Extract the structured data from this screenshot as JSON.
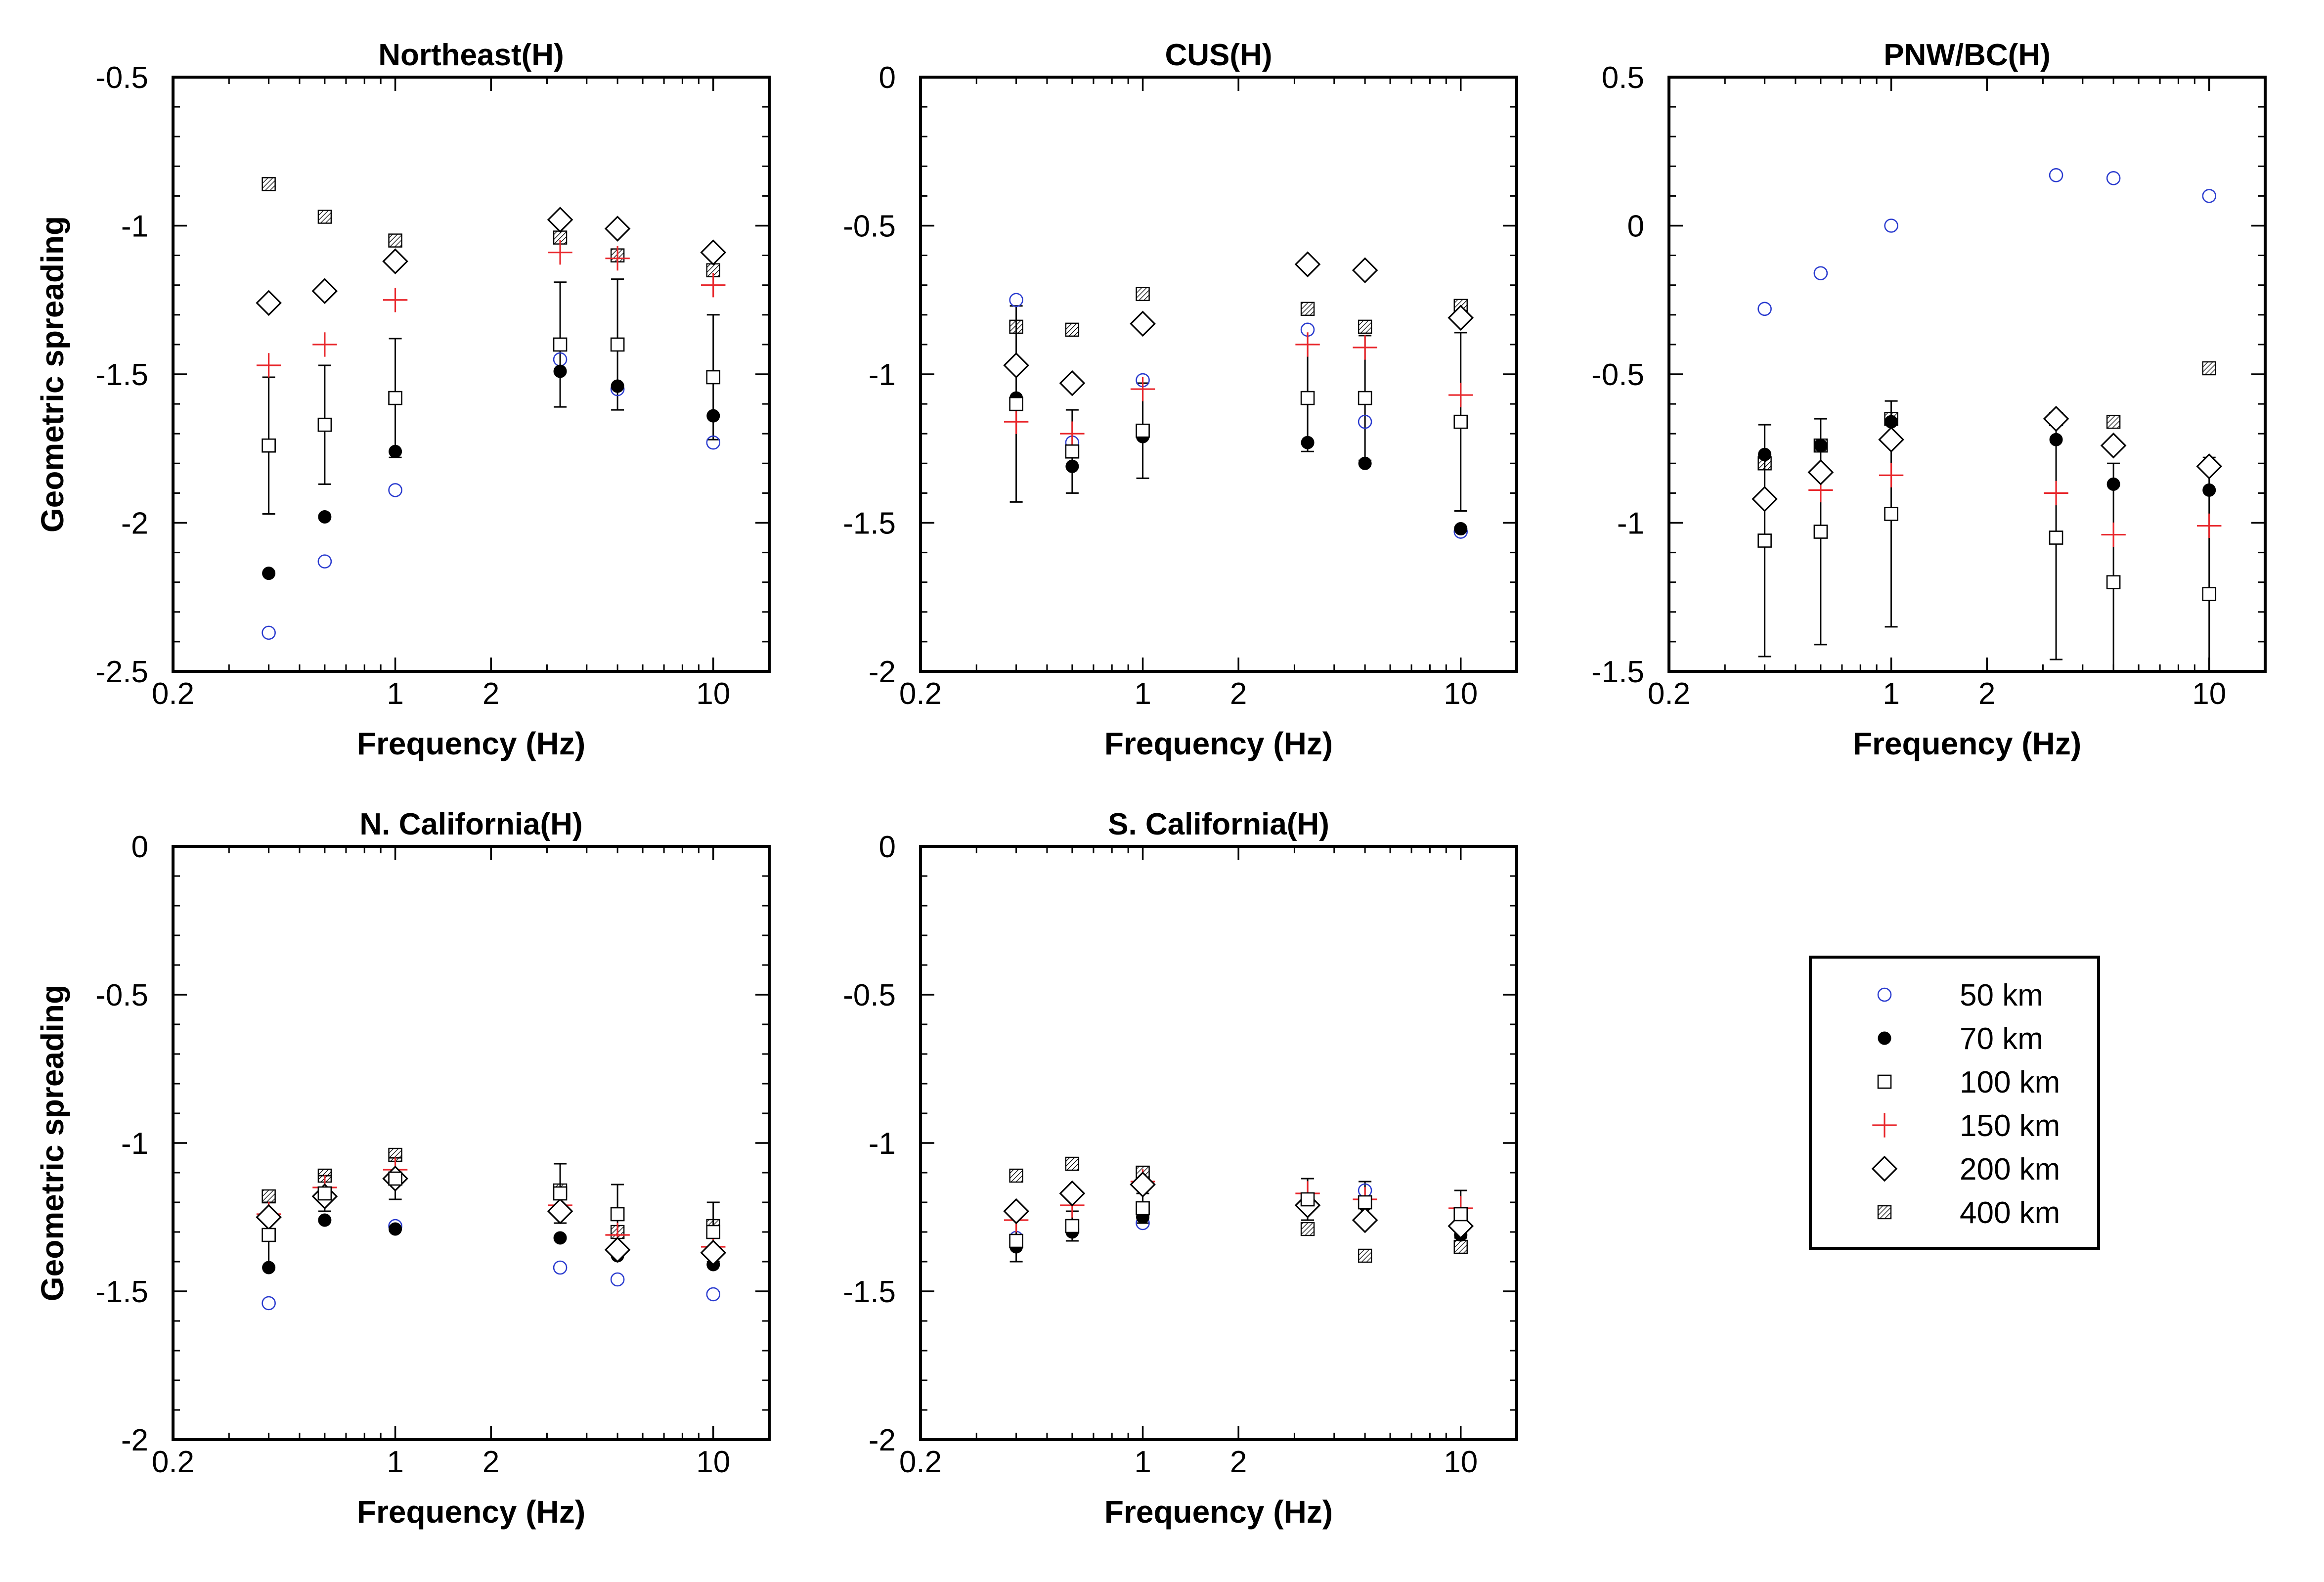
{
  "chart_data": {
    "type": "scatter",
    "x_scale": "log",
    "grid": false,
    "legend": {
      "placement": "bottom-right",
      "entries": [
        {
          "label": "50 km",
          "marker": "open-circle",
          "color": "#2b3ccf"
        },
        {
          "label": "70 km",
          "marker": "filled-circle",
          "color": "#000000"
        },
        {
          "label": "100 km",
          "marker": "open-square",
          "color": "#000000"
        },
        {
          "label": "150 km",
          "marker": "plus",
          "color": "#e8262b"
        },
        {
          "label": "200 km",
          "marker": "open-diamond",
          "color": "#000000"
        },
        {
          "label": "400 km",
          "marker": "hatched-square",
          "color": "#000000"
        }
      ]
    },
    "panels": [
      {
        "title": "Northeast(H)",
        "xlabel": "Frequency (Hz)",
        "ylabel": "Geometric spreading",
        "xlim": [
          0.2,
          15
        ],
        "ylim": [
          -2.5,
          -0.5
        ],
        "xticks": [
          0.2,
          1,
          2,
          10
        ],
        "yticks": [
          -2.5,
          -2,
          -1.5,
          -1,
          -0.5
        ],
        "x": [
          0.4,
          0.6,
          1,
          3.3,
          5,
          10
        ],
        "series": [
          {
            "label": "50 km",
            "values": [
              -2.37,
              -2.13,
              -1.89,
              -1.45,
              -1.55,
              -1.73
            ]
          },
          {
            "label": "70 km",
            "values": [
              -2.17,
              -1.98,
              -1.76,
              -1.49,
              -1.54,
              -1.64
            ]
          },
          {
            "label": "100 km",
            "values": [
              -1.74,
              -1.67,
              -1.58,
              -1.4,
              -1.4,
              -1.51
            ],
            "err": [
              0.23,
              0.2,
              0.2,
              0.21,
              0.22,
              0.21
            ]
          },
          {
            "label": "150 km",
            "values": [
              -1.47,
              -1.4,
              -1.25,
              -1.09,
              -1.11,
              -1.2
            ]
          },
          {
            "label": "200 km",
            "values": [
              -1.26,
              -1.22,
              -1.12,
              -0.98,
              -1.01,
              -1.09
            ]
          },
          {
            "label": "400 km",
            "values": [
              -0.86,
              -0.97,
              -1.05,
              -1.04,
              -1.1,
              -1.15
            ]
          }
        ]
      },
      {
        "title": "CUS(H)",
        "xlabel": "Frequency (Hz)",
        "ylabel": "",
        "xlim": [
          0.2,
          15
        ],
        "ylim": [
          -2,
          0
        ],
        "xticks": [
          0.2,
          1,
          2,
          10
        ],
        "yticks": [
          -2,
          -1.5,
          -1,
          -0.5,
          0
        ],
        "x": [
          0.4,
          0.6,
          1,
          3.3,
          5,
          10
        ],
        "series": [
          {
            "label": "50 km",
            "values": [
              -0.75,
              -1.23,
              -1.02,
              -0.85,
              -1.16,
              -1.53
            ]
          },
          {
            "label": "70 km",
            "values": [
              -1.08,
              -1.31,
              -1.21,
              -1.23,
              -1.3,
              -1.52
            ]
          },
          {
            "label": "100 km",
            "values": [
              -1.1,
              -1.26,
              -1.19,
              -1.08,
              -1.08,
              -1.16
            ],
            "err": [
              0.33,
              0.14,
              0.16,
              0.18,
              0.21,
              0.3
            ]
          },
          {
            "label": "150 km",
            "values": [
              -1.16,
              -1.2,
              -1.05,
              -0.9,
              -0.91,
              -1.07
            ]
          },
          {
            "label": "200 km",
            "values": [
              -0.97,
              -1.03,
              -0.83,
              -0.63,
              -0.65,
              -0.81
            ]
          },
          {
            "label": "400 km",
            "values": [
              -0.84,
              -0.85,
              -0.73,
              -0.78,
              -0.84,
              -0.77
            ]
          }
        ]
      },
      {
        "title": "PNW/BC(H)",
        "xlabel": "Frequency (Hz)",
        "ylabel": "",
        "xlim": [
          0.2,
          15
        ],
        "ylim": [
          -1.5,
          0.5
        ],
        "xticks": [
          0.2,
          1,
          2,
          10
        ],
        "yticks": [
          -1.5,
          -1,
          -0.5,
          0,
          0.5
        ],
        "x": [
          0.4,
          0.6,
          1,
          3.3,
          5,
          10
        ],
        "series": [
          {
            "label": "50 km",
            "values": [
              -0.28,
              -0.16,
              0.0,
              0.17,
              0.16,
              0.1
            ]
          },
          {
            "label": "70 km",
            "values": [
              -0.77,
              -0.74,
              -0.66,
              -0.72,
              -0.87,
              -0.89
            ]
          },
          {
            "label": "100 km",
            "values": [
              -1.06,
              -1.03,
              -0.97,
              -1.05,
              -1.2,
              -1.24
            ],
            "err": [
              0.39,
              0.38,
              0.38,
              0.41,
              0.4,
              0.46
            ]
          },
          {
            "label": "150 km",
            "values": [
              -0.92,
              -0.89,
              -0.84,
              -0.9,
              -1.04,
              -1.01
            ]
          },
          {
            "label": "200 km",
            "values": [
              -0.92,
              -0.83,
              -0.72,
              -0.65,
              -0.74,
              -0.81
            ]
          },
          {
            "label": "400 km",
            "values": [
              -0.8,
              -0.74,
              -0.65,
              -0.65,
              -0.66,
              -0.48
            ]
          }
        ]
      },
      {
        "title": "N. California(H)",
        "xlabel": "Frequency (Hz)",
        "ylabel": "Geometric spreading",
        "xlim": [
          0.2,
          15
        ],
        "ylim": [
          -2,
          0
        ],
        "xticks": [
          0.2,
          1,
          2,
          10
        ],
        "yticks": [
          -2,
          -1.5,
          -1,
          -0.5,
          0
        ],
        "x": [
          0.4,
          0.6,
          1,
          3.3,
          5,
          10
        ],
        "series": [
          {
            "label": "50 km",
            "values": [
              -1.54,
              -1.18,
              -1.28,
              -1.42,
              -1.46,
              -1.51
            ]
          },
          {
            "label": "70 km",
            "values": [
              -1.42,
              -1.26,
              -1.29,
              -1.32,
              -1.38,
              -1.41
            ]
          },
          {
            "label": "100 km",
            "values": [
              -1.31,
              -1.17,
              -1.12,
              -1.17,
              -1.24,
              -1.3
            ],
            "err": [
              0.11,
              0.06,
              0.07,
              0.1,
              0.1,
              0.1
            ]
          },
          {
            "label": "150 km",
            "values": [
              -1.24,
              -1.15,
              -1.09,
              -1.21,
              -1.31,
              -1.35
            ]
          },
          {
            "label": "200 km",
            "values": [
              -1.25,
              -1.18,
              -1.12,
              -1.23,
              -1.36,
              -1.37
            ]
          },
          {
            "label": "400 km",
            "values": [
              -1.18,
              -1.11,
              -1.04,
              -1.16,
              -1.3,
              -1.28
            ]
          }
        ]
      },
      {
        "title": "S. California(H)",
        "xlabel": "Frequency (Hz)",
        "ylabel": "",
        "xlim": [
          0.2,
          15
        ],
        "ylim": [
          -2,
          0
        ],
        "xticks": [
          0.2,
          1,
          2,
          10
        ],
        "yticks": [
          -2,
          -1.5,
          -1,
          -0.5,
          0
        ],
        "x": [
          0.4,
          0.6,
          1,
          3.3,
          5,
          10
        ],
        "series": [
          {
            "label": "50 km",
            "values": [
              -1.32,
              -1.29,
              -1.27,
              -1.2,
              -1.16,
              -1.24
            ]
          },
          {
            "label": "70 km",
            "values": [
              -1.35,
              -1.3,
              -1.25,
              -1.22,
              -1.21,
              -1.31
            ]
          },
          {
            "label": "100 km",
            "values": [
              -1.33,
              -1.28,
              -1.22,
              -1.19,
              -1.2,
              -1.24
            ],
            "err": [
              0.07,
              0.05,
              0.05,
              0.07,
              0.07,
              0.08
            ]
          },
          {
            "label": "150 km",
            "values": [
              -1.26,
              -1.21,
              -1.13,
              -1.17,
              -1.19,
              -1.22
            ]
          },
          {
            "label": "200 km",
            "values": [
              -1.23,
              -1.17,
              -1.14,
              -1.21,
              -1.26,
              -1.28
            ]
          },
          {
            "label": "400 km",
            "values": [
              -1.11,
              -1.07,
              -1.1,
              -1.29,
              -1.38,
              -1.35
            ]
          }
        ]
      }
    ]
  }
}
